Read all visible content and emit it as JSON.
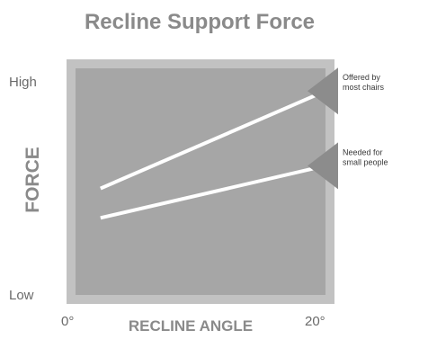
{
  "colors": {
    "plot_bg": "#a6a6a6",
    "frame": "#c2c2c2",
    "line": "#ffffff",
    "callout": "#8c8c8c",
    "title": "#8a8a8a",
    "axis_title": "#8a8a8a",
    "ticks": "#6a6a6a"
  },
  "chart_data": {
    "type": "line",
    "title": "Recline Support Force",
    "xlabel": "RECLINE ANGLE",
    "ylabel": "FORCE",
    "x_ticks": [
      "0°",
      "20°"
    ],
    "y_ticks": [
      "Low",
      "High"
    ],
    "xlim": [
      0,
      20
    ],
    "ylim": [
      0,
      100
    ],
    "grid": false,
    "series": [
      {
        "name": "Offered by most chairs",
        "x": [
          2,
          20
        ],
        "y": [
          47,
          90
        ]
      },
      {
        "name": "Needed for small people",
        "x": [
          2,
          20
        ],
        "y": [
          34,
          57
        ]
      }
    ],
    "annotations": [
      {
        "lines": [
          "Offered by",
          "most chairs"
        ],
        "series": 0
      },
      {
        "lines": [
          "Needed for",
          "small people"
        ],
        "series": 1
      }
    ]
  }
}
